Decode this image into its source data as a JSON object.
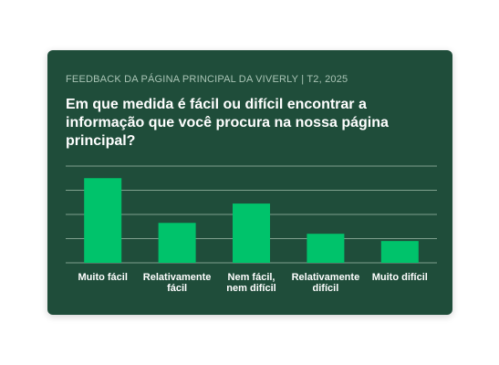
{
  "header": {
    "eyebrow": "FEEDBACK DA PÁGINA PRINCIPAL DA VIVERLY | T2, 2025",
    "question": "Em que medida é fácil ou difícil encontrar a informação que você procura na nossa página principal?"
  },
  "colors": {
    "card_background": "#1f4d3a",
    "bar": "#00c36b",
    "grid": "#7fa08e",
    "text": "#ffffff",
    "eyebrow_text": "#a9c4b5"
  },
  "chart_data": {
    "type": "bar",
    "title": "",
    "xlabel": "",
    "ylabel": "",
    "categories": [
      [
        "Muito fácil"
      ],
      [
        "Relativamente",
        "fácil"
      ],
      [
        "Nem fácil,",
        "nem difícil"
      ],
      [
        "Relativamente",
        "difícil"
      ],
      [
        "Muito difícil"
      ]
    ],
    "values": [
      35,
      16.5,
      24.5,
      12,
      9
    ],
    "ylim": [
      0,
      40
    ],
    "grid": true,
    "legend": "none"
  }
}
